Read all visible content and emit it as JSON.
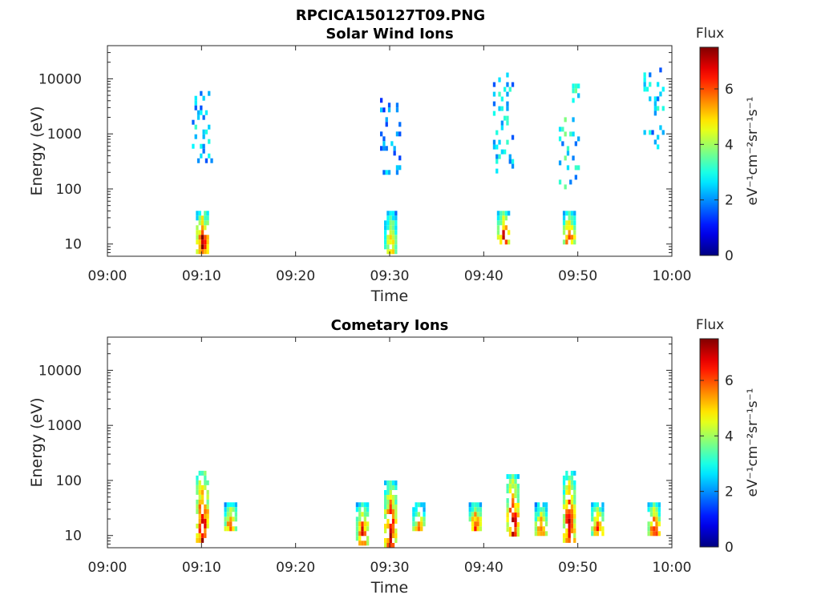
{
  "figure_title": "RPCICA150127T09.PNG",
  "chart_data": [
    {
      "type": "heatmap",
      "title": "Solar Wind Ions",
      "xlabel": "Time",
      "ylabel": "Energy (eV)",
      "y_scale": "log",
      "xlim": [
        "09:00",
        "10:00"
      ],
      "ylim": [
        6,
        40000
      ],
      "x_ticks": [
        "09:00",
        "09:10",
        "09:20",
        "09:30",
        "09:40",
        "09:50",
        "10:00"
      ],
      "y_ticks": [
        10,
        100,
        1000,
        10000
      ],
      "y_tick_labels": [
        "10",
        "100",
        "1000",
        "10000"
      ],
      "colorbar": {
        "label": "Flux",
        "unit": "eV⁻¹cm⁻²sr⁻¹s⁻¹",
        "range": [
          0,
          7.5
        ],
        "ticks": [
          0,
          2,
          4,
          6
        ],
        "colormap": "jet"
      },
      "clusters": [
        {
          "time": "09:10",
          "energy_range": [
            8,
            40
          ],
          "peak_flux": 6.8
        },
        {
          "time": "09:10",
          "energy_range": [
            300,
            6000
          ],
          "peak_flux": 3.0
        },
        {
          "time": "09:30",
          "energy_range": [
            8,
            40
          ],
          "peak_flux": 5.2
        },
        {
          "time": "09:30",
          "energy_range": [
            200,
            4500
          ],
          "peak_flux": 2.5
        },
        {
          "time": "09:42",
          "energy_range": [
            10,
            40
          ],
          "peak_flux": 6.5
        },
        {
          "time": "09:42",
          "energy_range": [
            200,
            13000
          ],
          "peak_flux": 3.0
        },
        {
          "time": "09:49",
          "energy_range": [
            10,
            40
          ],
          "peak_flux": 6.3
        },
        {
          "time": "09:49",
          "energy_range": [
            100,
            10000
          ],
          "peak_flux": 3.5
        },
        {
          "time": "09:58",
          "energy_range": [
            600,
            16000
          ],
          "peak_flux": 3.0
        }
      ]
    },
    {
      "type": "heatmap",
      "title": "Cometary Ions",
      "xlabel": "Time",
      "ylabel": "Energy (eV)",
      "y_scale": "log",
      "xlim": [
        "09:00",
        "10:00"
      ],
      "ylim": [
        6,
        40000
      ],
      "x_ticks": [
        "09:00",
        "09:10",
        "09:20",
        "09:30",
        "09:40",
        "09:50",
        "10:00"
      ],
      "y_ticks": [
        10,
        100,
        1000,
        10000
      ],
      "y_tick_labels": [
        "10",
        "100",
        "1000",
        "10000"
      ],
      "colorbar": {
        "label": "Flux",
        "unit": "eV⁻¹cm⁻²sr⁻¹s⁻¹",
        "range": [
          0,
          7.5
        ],
        "ticks": [
          0,
          2,
          4,
          6
        ],
        "colormap": "jet"
      },
      "clusters": [
        {
          "time": "09:10",
          "energy_range": [
            8,
            150
          ],
          "peak_flux": 7.2
        },
        {
          "time": "09:13",
          "energy_range": [
            12,
            40
          ],
          "peak_flux": 6.0
        },
        {
          "time": "09:27",
          "energy_range": [
            8,
            40
          ],
          "peak_flux": 6.3
        },
        {
          "time": "09:30",
          "energy_range": [
            7,
            100
          ],
          "peak_flux": 6.8
        },
        {
          "time": "09:33",
          "energy_range": [
            12,
            40
          ],
          "peak_flux": 5.5
        },
        {
          "time": "09:39",
          "energy_range": [
            12,
            40
          ],
          "peak_flux": 6.3
        },
        {
          "time": "09:43",
          "energy_range": [
            10,
            130
          ],
          "peak_flux": 7.0
        },
        {
          "time": "09:46",
          "energy_range": [
            10,
            40
          ],
          "peak_flux": 5.8
        },
        {
          "time": "09:49",
          "energy_range": [
            8,
            150
          ],
          "peak_flux": 6.8
        },
        {
          "time": "09:52",
          "energy_range": [
            10,
            40
          ],
          "peak_flux": 6.0
        },
        {
          "time": "09:58",
          "energy_range": [
            10,
            40
          ],
          "peak_flux": 6.3
        }
      ]
    }
  ]
}
